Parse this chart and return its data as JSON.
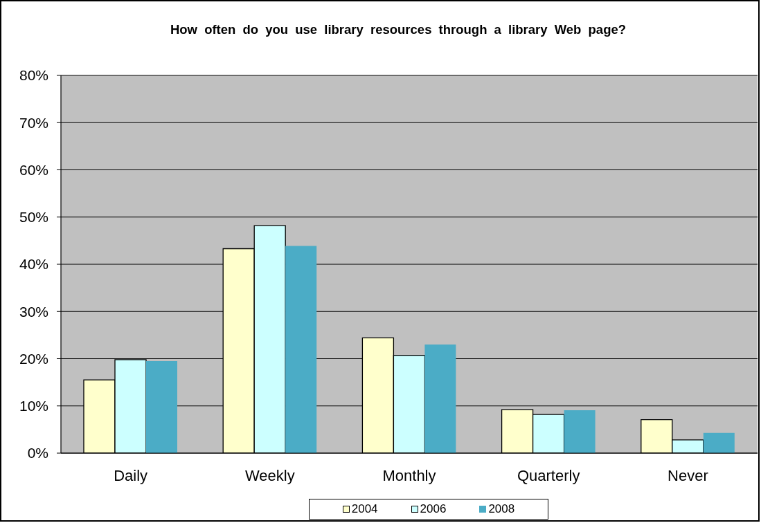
{
  "chart_data": {
    "type": "bar",
    "title": "How often do you use library resources through a library Web page?",
    "categories": [
      "Daily",
      "Weekly",
      "Monthly",
      "Quarterly",
      "Never"
    ],
    "series": [
      {
        "name": "2004",
        "color": "#ffffcc",
        "values": [
          15.5,
          43.3,
          24.4,
          9.2,
          7.1
        ]
      },
      {
        "name": "2006",
        "color": "#ccffff",
        "values": [
          19.8,
          48.2,
          20.7,
          8.2,
          2.8
        ]
      },
      {
        "name": "2008",
        "color": "#4bacc6",
        "values": [
          19.5,
          43.9,
          23.0,
          9.1,
          4.3
        ]
      }
    ],
    "ylim": [
      0,
      80
    ],
    "yticks": [
      {
        "value": 0,
        "label": "0%"
      },
      {
        "value": 10,
        "label": "10%"
      },
      {
        "value": 20,
        "label": "20%"
      },
      {
        "value": 30,
        "label": "30%"
      },
      {
        "value": 40,
        "label": "40%"
      },
      {
        "value": 50,
        "label": "50%"
      },
      {
        "value": 60,
        "label": "60%"
      },
      {
        "value": 70,
        "label": "70%"
      },
      {
        "value": 80,
        "label": "80%"
      }
    ],
    "grid": "y",
    "legend": "bottom"
  }
}
